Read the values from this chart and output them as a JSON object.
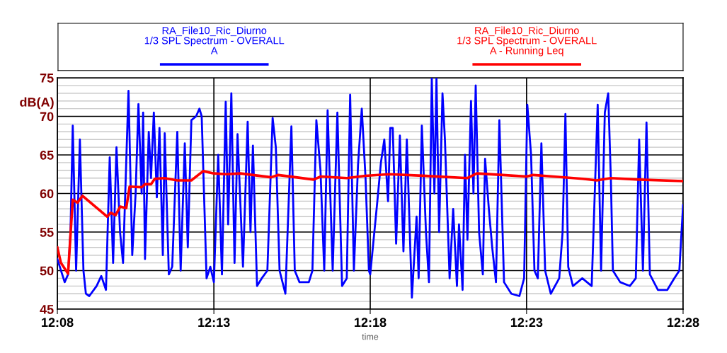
{
  "chart_data": {
    "type": "line",
    "xlabel": "time",
    "ylabel": "dB(A)",
    "xlim": [
      12.1333,
      12.4667
    ],
    "xticks": [
      {
        "value": 12.1333,
        "label": "12:08"
      },
      {
        "value": 12.2167,
        "label": "12:13"
      },
      {
        "value": 12.3,
        "label": "12:18"
      },
      {
        "value": 12.3833,
        "label": "12:23"
      },
      {
        "value": 12.4667,
        "label": "12:28"
      }
    ],
    "ylim": [
      45,
      75
    ],
    "yticks": [
      45,
      {
        "value": 46,
        "label": null
      },
      {
        "value": 47,
        "label": null
      },
      {
        "value": 48,
        "label": null
      },
      {
        "value": 49,
        "label": null
      },
      50,
      {
        "value": 51,
        "label": null
      },
      {
        "value": 52,
        "label": null
      },
      {
        "value": 53,
        "label": null
      },
      {
        "value": 54,
        "label": null
      },
      55,
      {
        "value": 56,
        "label": null
      },
      {
        "value": 57,
        "label": null
      },
      {
        "value": 58,
        "label": null
      },
      {
        "value": 59,
        "label": null
      },
      60,
      {
        "value": 61,
        "label": null
      },
      {
        "value": 62,
        "label": null
      },
      {
        "value": 63,
        "label": null
      },
      {
        "value": 64,
        "label": null
      },
      65,
      {
        "value": 66,
        "label": null
      },
      {
        "value": 67,
        "label": null
      },
      {
        "value": 68,
        "label": null
      },
      {
        "value": 69,
        "label": null
      },
      70,
      {
        "value": 71,
        "label": null
      },
      {
        "value": 72,
        "label": null
      },
      {
        "value": 73,
        "label": null
      },
      {
        "value": 74,
        "label": null
      },
      75
    ],
    "grid": true,
    "legend": "top",
    "marker": "none",
    "line_style": "solid",
    "series": [
      {
        "name": "RA_File10_Ric_Diurno\n1/3 SPL Spectrum - OVERALL\nA",
        "color": "#0000ff",
        "x": [
          12.1333,
          12.1372,
          12.139,
          12.1403,
          12.1415,
          12.1433,
          12.1453,
          12.1472,
          12.1485,
          12.1503,
          12.1542,
          12.1567,
          12.1592,
          12.1612,
          12.163,
          12.1648,
          12.1667,
          12.1683,
          12.1712,
          12.1732,
          12.175,
          12.1765,
          12.1782,
          12.179,
          12.18,
          12.182,
          12.1832,
          12.1847,
          12.1863,
          12.1877,
          12.1895,
          12.1905,
          12.1927,
          12.1945,
          12.1972,
          12.199,
          12.2012,
          12.2028,
          12.2047,
          12.2072,
          12.209,
          12.2102,
          12.2128,
          12.2148,
          12.2167,
          12.219,
          12.221,
          12.223,
          12.2243,
          12.226,
          12.2277,
          12.2293,
          12.2322,
          12.2347,
          12.2362,
          12.2375,
          12.2397,
          12.2422,
          12.2452,
          12.248,
          12.2497,
          12.2517,
          12.2548,
          12.258,
          12.2598,
          12.2623,
          12.2673,
          12.2692,
          12.2713,
          12.2735,
          12.2755,
          12.2773,
          12.28,
          12.2825,
          12.285,
          12.2875,
          12.2893,
          12.2913,
          12.2935,
          12.2955,
          12.2975,
          12.2993,
          12.3,
          12.3038,
          12.3057,
          12.3075,
          12.3095,
          12.3107,
          12.312,
          12.3138,
          12.3158,
          12.3177,
          12.3195,
          12.3222,
          12.3247,
          12.3258,
          12.3275,
          12.3297,
          12.3313,
          12.3328,
          12.3342,
          12.3353,
          12.3367,
          12.3385,
          12.3398,
          12.3423,
          12.3442,
          12.3462,
          12.3473,
          12.3492,
          12.3505,
          12.3518,
          12.3537,
          12.355,
          12.3562,
          12.358,
          12.36,
          12.3612,
          12.3632,
          12.365,
          12.367,
          12.3688,
          12.3713,
          12.3752,
          12.3795,
          12.382,
          12.3837,
          12.3857,
          12.3875,
          12.3893,
          12.3912,
          12.3932,
          12.3962,
          12.4007,
          12.4025,
          12.404,
          12.4055,
          12.408,
          12.413,
          12.418,
          12.4212,
          12.423,
          12.425,
          12.4268,
          12.4282,
          12.4293,
          12.4332,
          12.4383,
          12.4415,
          12.4433,
          12.4453,
          12.4472,
          12.449,
          12.4533,
          12.4583,
          12.462,
          12.4647,
          12.4667
        ],
        "values": [
          51.5,
          48.5,
          49.5,
          55,
          68.8,
          50,
          67,
          50,
          47,
          46.7,
          48,
          49.3,
          47.5,
          64.7,
          51,
          66,
          55,
          51,
          73.3,
          52,
          60,
          71.6,
          60,
          70.5,
          51.5,
          68,
          62,
          70.5,
          59.5,
          68.5,
          52,
          67.8,
          49.5,
          50.5,
          68,
          50,
          66.5,
          53,
          69.5,
          70,
          71,
          70,
          49,
          50.5,
          48.5,
          65,
          49.5,
          71.9,
          56,
          73,
          51,
          67.7,
          50.5,
          69.3,
          55,
          66.2,
          48,
          49,
          50,
          69.8,
          66,
          50,
          47,
          68.7,
          50,
          48.5,
          48.5,
          50,
          69.5,
          63,
          50,
          70.8,
          50,
          70.5,
          48,
          49,
          72.8,
          50,
          63.7,
          71,
          62,
          50,
          49.5,
          59,
          64,
          67,
          59,
          68.5,
          68.5,
          53.5,
          67.5,
          52.5,
          67,
          46.5,
          57,
          49,
          68.8,
          55,
          48.5,
          75,
          60,
          75,
          55,
          73,
          67,
          49,
          58,
          48,
          56,
          47.5,
          65,
          54,
          72,
          60,
          74,
          55,
          49.5,
          64.5,
          58,
          53,
          48.5,
          69.5,
          48.5,
          47,
          46.7,
          49,
          71.5,
          65,
          50,
          49,
          66.5,
          50,
          47,
          49,
          55,
          70.3,
          50.5,
          48,
          49,
          48,
          71.5,
          50,
          70.5,
          73,
          62,
          50,
          48.5,
          48,
          49,
          67,
          50,
          69.2,
          49.5,
          47.5,
          47.5,
          49,
          50,
          58.5
        ]
      },
      {
        "name": "RA_File10_Ric_Diurno\n1/3 SPL Spectrum - OVERALL\nA - Running Leq",
        "color": "#ff0000",
        "x": [
          12.1333,
          12.1352,
          12.139,
          12.1415,
          12.144,
          12.1467,
          12.1598,
          12.1617,
          12.1643,
          12.1668,
          12.17,
          12.1718,
          12.1782,
          12.18,
          12.1832,
          12.1852,
          12.1902,
          12.1972,
          12.2047,
          12.211,
          12.2167,
          12.2233,
          12.2308,
          12.2472,
          12.251,
          12.2698,
          12.2737,
          12.2875,
          12.2975,
          12.3102,
          12.3278,
          12.3518,
          12.3568,
          12.3707,
          12.3833,
          12.3868,
          12.4132,
          12.4207,
          12.4282,
          12.4433,
          12.4667
        ],
        "values": [
          53,
          51,
          49.6,
          59.2,
          58.8,
          59.7,
          57,
          57.5,
          57.2,
          58.3,
          58.1,
          60.9,
          60.8,
          61.2,
          61.2,
          61.9,
          62,
          61.7,
          61.7,
          62.9,
          62.6,
          62.5,
          62.6,
          62.1,
          62.4,
          61.8,
          62.2,
          62.0,
          62.3,
          62.5,
          62.3,
          62.0,
          62.6,
          62.4,
          62.2,
          62.4,
          61.9,
          61.7,
          62.0,
          61.8,
          61.6
        ]
      }
    ]
  }
}
